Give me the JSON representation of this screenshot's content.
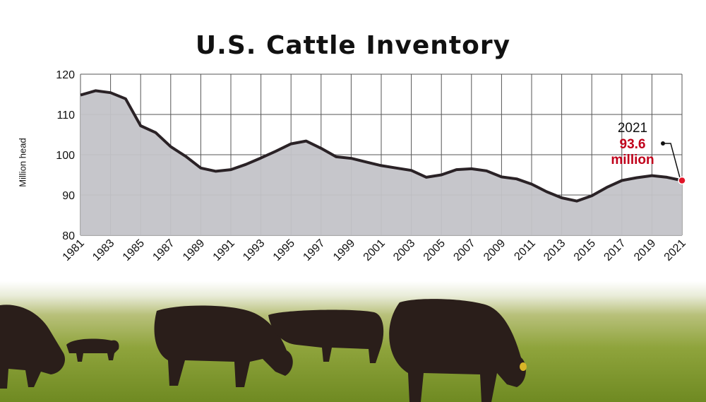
{
  "colors": {
    "area_fill": "#c3c3c8",
    "line": "#2a2226",
    "grid": "#555555",
    "accent": "#c0001a",
    "background": "#ffffff"
  },
  "photo": {
    "subject": "black cattle grazing in a green pasture"
  },
  "chart_data": {
    "type": "area",
    "title": "U.S. Cattle Inventory",
    "xlabel": "",
    "ylabel": "Million head",
    "ylim": [
      80,
      120
    ],
    "yticks": [
      "80",
      "90",
      "100",
      "110",
      "120"
    ],
    "xticks": [
      "1981",
      "1983",
      "1985",
      "1987",
      "1989",
      "1991",
      "1993",
      "1995",
      "1997",
      "1999",
      "2001",
      "2003",
      "2005",
      "2007",
      "2009",
      "2011",
      "2013",
      "2015",
      "2017",
      "2019",
      "2021"
    ],
    "grid": true,
    "x": [
      1981,
      1982,
      1983,
      1984,
      1985,
      1986,
      1987,
      1988,
      1989,
      1990,
      1991,
      1992,
      1993,
      1994,
      1995,
      1996,
      1997,
      1998,
      1999,
      2000,
      2001,
      2002,
      2003,
      2004,
      2005,
      2006,
      2007,
      2008,
      2009,
      2010,
      2011,
      2012,
      2013,
      2014,
      2015,
      2016,
      2017,
      2018,
      2019,
      2020,
      2021
    ],
    "values": [
      114.8,
      115.9,
      115.4,
      113.9,
      107.2,
      105.5,
      102.0,
      99.6,
      96.7,
      95.9,
      96.3,
      97.6,
      99.2,
      100.9,
      102.7,
      103.4,
      101.6,
      99.5,
      99.1,
      98.2,
      97.3,
      96.7,
      96.1,
      94.4,
      95.0,
      96.3,
      96.5,
      96.0,
      94.5,
      94.0,
      92.7,
      90.8,
      89.3,
      88.5,
      89.8,
      91.9,
      93.6,
      94.3,
      94.8,
      94.4,
      93.6
    ],
    "annotation": {
      "year": "2021",
      "value": "93.6",
      "unit": "million"
    }
  }
}
